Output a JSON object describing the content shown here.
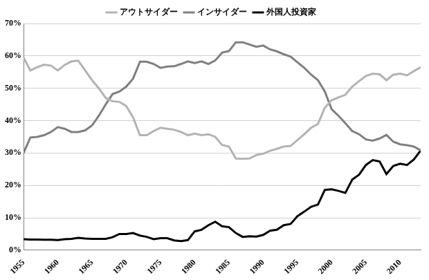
{
  "chart_data": {
    "type": "line",
    "x": [
      1955,
      1956,
      1957,
      1958,
      1959,
      1960,
      1961,
      1962,
      1963,
      1964,
      1965,
      1966,
      1967,
      1968,
      1969,
      1970,
      1971,
      1972,
      1973,
      1974,
      1975,
      1976,
      1977,
      1978,
      1979,
      1980,
      1981,
      1982,
      1983,
      1984,
      1985,
      1986,
      1987,
      1988,
      1989,
      1990,
      1991,
      1992,
      1993,
      1994,
      1995,
      1996,
      1997,
      1998,
      1999,
      2000,
      2001,
      2002,
      2003,
      2004,
      2005,
      2006,
      2007,
      2008,
      2009,
      2010,
      2011,
      2012,
      2013
    ],
    "series": [
      {
        "name": "アウトサイダー",
        "color": "#b3b3b3",
        "values": [
          59.5,
          55.5,
          56.5,
          57.3,
          57,
          55.5,
          57.2,
          58.3,
          58.5,
          55.5,
          52.5,
          50,
          47,
          46,
          45.8,
          44.5,
          41,
          35.5,
          35.5,
          36.8,
          37.8,
          37.5,
          37.2,
          36.5,
          35.5,
          36,
          35.5,
          35.8,
          35,
          32.5,
          32,
          28.3,
          28.2,
          28.3,
          29.4,
          29.8,
          30.7,
          31.3,
          32,
          32.2,
          34,
          35.8,
          37.8,
          39,
          44,
          46.3,
          47.2,
          48,
          50.5,
          52.2,
          53.8,
          54.5,
          54.3,
          52.5,
          54.2,
          54.5,
          54,
          55.3,
          56.5
        ]
      },
      {
        "name": "インサイダー",
        "color": "#7f7f7f",
        "values": [
          30,
          34.8,
          35,
          35.5,
          36.5,
          38,
          37.5,
          36.5,
          36.5,
          37,
          38.5,
          41.5,
          45,
          48.2,
          49,
          50.5,
          53,
          58.2,
          58.2,
          57.5,
          56.3,
          56.7,
          56.8,
          57.5,
          58.3,
          57.8,
          58.3,
          57.5,
          58.6,
          61,
          61.5,
          64.2,
          64.2,
          63.5,
          62.8,
          63.2,
          62,
          61.4,
          60.5,
          59.8,
          58,
          56.3,
          54.2,
          52.5,
          49,
          43.5,
          41.5,
          39.2,
          36.8,
          35.8,
          34.2,
          33.8,
          34.5,
          35.6,
          33.5,
          32.7,
          32.4,
          32,
          30.8
        ]
      },
      {
        "name": "外国人投資家",
        "color": "#000000",
        "values": [
          3.4,
          3.3,
          3.3,
          3.2,
          3.2,
          3.1,
          3.4,
          3.5,
          3.8,
          3.6,
          3.5,
          3.5,
          3.5,
          4,
          5,
          5,
          5.3,
          4.5,
          4.1,
          3.4,
          3.7,
          3.7,
          3,
          2.8,
          3.1,
          5.8,
          6.3,
          7.7,
          8.8,
          7.4,
          7.1,
          5.3,
          4.1,
          4.3,
          4.2,
          4.7,
          6,
          6.3,
          7.7,
          8.1,
          10.5,
          11.9,
          13.4,
          14.1,
          18.6,
          18.8,
          18.3,
          17.7,
          21.8,
          23.3,
          26.3,
          27.8,
          27.4,
          23.5,
          26,
          26.7,
          26.3,
          28,
          30.8
        ]
      }
    ],
    "xlim": [
      1955,
      2013
    ],
    "xticks": [
      1955,
      1960,
      1965,
      1970,
      1975,
      1980,
      1985,
      1990,
      1995,
      2000,
      2005,
      2010
    ],
    "ylim": [
      0,
      70
    ],
    "yticks": [
      {
        "value": 0,
        "label": "0%"
      },
      {
        "value": 10,
        "label": "10%"
      },
      {
        "value": 20,
        "label": "20%"
      },
      {
        "value": 30,
        "label": "30%"
      },
      {
        "value": 40,
        "label": "40%"
      },
      {
        "value": 50,
        "label": "50%"
      },
      {
        "value": 60,
        "label": "60%"
      },
      {
        "value": 70,
        "label": "70%"
      }
    ],
    "grid": true,
    "legend": "top"
  }
}
